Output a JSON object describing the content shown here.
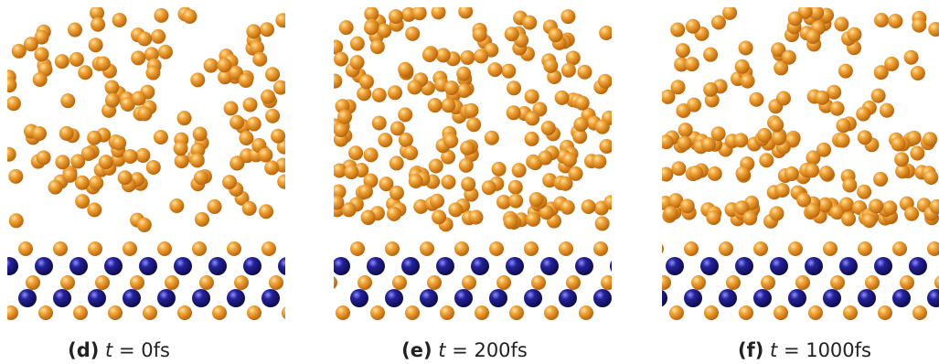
{
  "panels": [
    {
      "letter": "(d)",
      "variable": "t",
      "rest": "= 0fs"
    },
    {
      "letter": "(e)",
      "variable": "t",
      "rest": "= 200fs"
    },
    {
      "letter": "(f)",
      "variable": "t",
      "rest": "= 1000fs"
    }
  ]
}
